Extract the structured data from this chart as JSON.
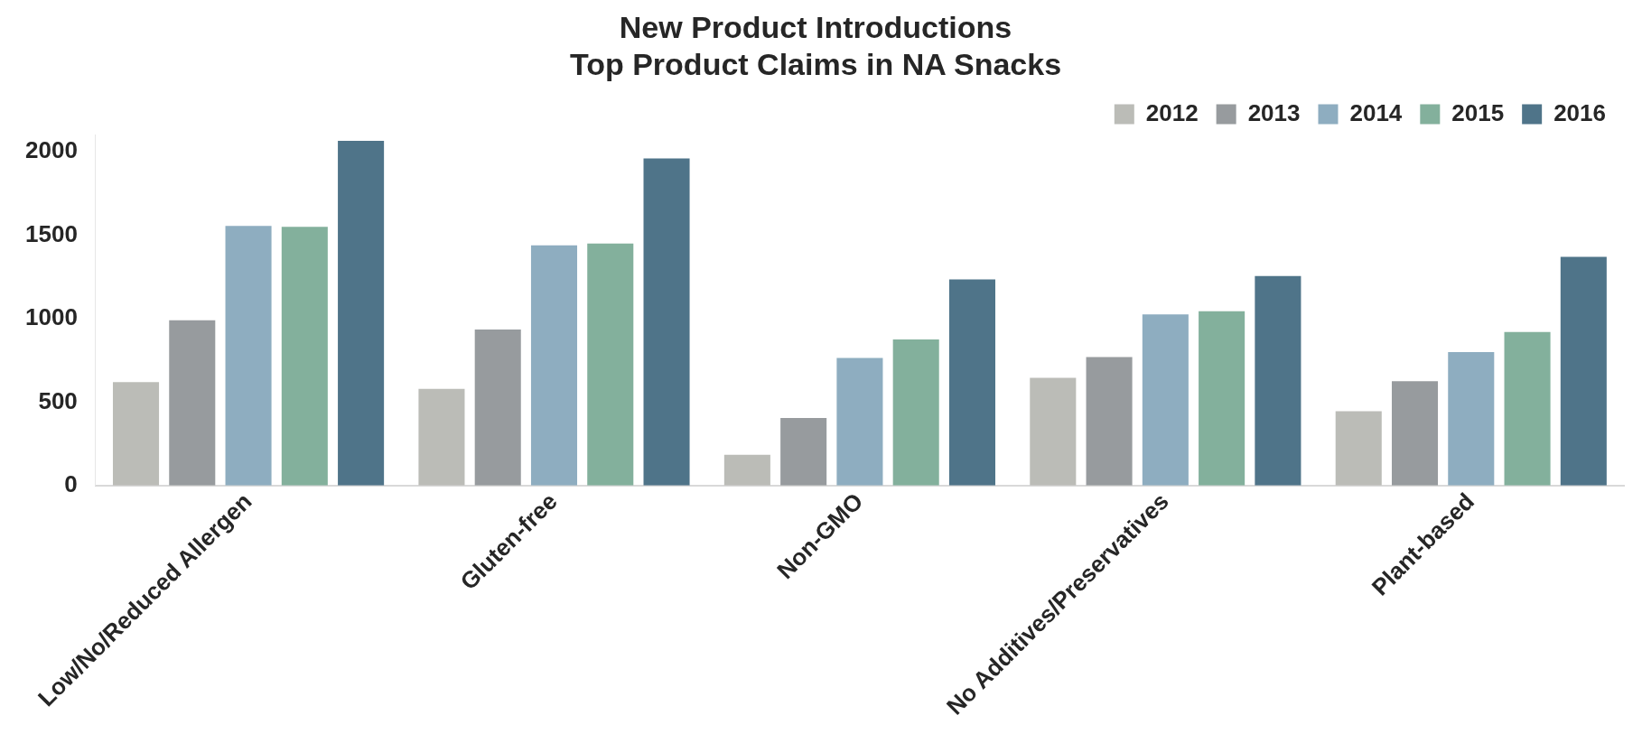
{
  "chart_data": {
    "type": "bar",
    "title": [
      "New Product Introductions",
      "Top Product Claims in NA Snacks"
    ],
    "categories": [
      "Low/No/Reduced Allergen",
      "Gluten-free",
      "Non-GMO",
      "No Additives/Preservatives",
      "Plant-based"
    ],
    "series": [
      {
        "name": "2012",
        "color": "#bbbcb7",
        "values": [
          620,
          580,
          185,
          645,
          445
        ]
      },
      {
        "name": "2013",
        "color": "#979b9e",
        "values": [
          990,
          935,
          405,
          770,
          625
        ]
      },
      {
        "name": "2014",
        "color": "#8eadc0",
        "values": [
          1555,
          1440,
          765,
          1025,
          800
        ]
      },
      {
        "name": "2015",
        "color": "#83b09c",
        "values": [
          1550,
          1450,
          875,
          1045,
          920
        ]
      },
      {
        "name": "2016",
        "color": "#4f7489",
        "values": [
          2065,
          1960,
          1235,
          1255,
          1370
        ]
      }
    ],
    "ylim": [
      0,
      2100
    ],
    "yticks": [
      0,
      500,
      1000,
      1500,
      2000
    ],
    "grid": false,
    "legend": "top right"
  }
}
